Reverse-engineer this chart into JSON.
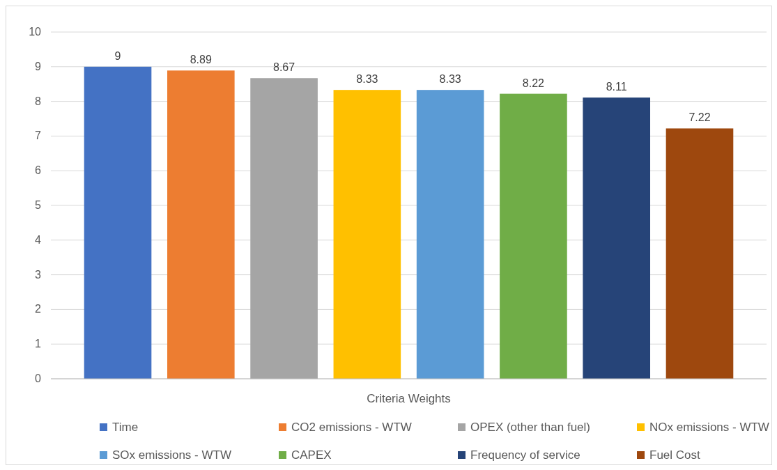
{
  "chart_data": {
    "type": "bar",
    "xlabel": "Criteria Weights",
    "categories": [
      null
    ],
    "series": [
      {
        "name": "Time",
        "color": "#4472c4",
        "values": [
          9
        ]
      },
      {
        "name": "CO2 emissions - WTW",
        "color": "#ed7d31",
        "values": [
          8.89
        ]
      },
      {
        "name": "OPEX (other than fuel)",
        "color": "#a5a5a5",
        "values": [
          8.67
        ]
      },
      {
        "name": "NOx emissions - WTW",
        "color": "#ffc000",
        "values": [
          8.33
        ]
      },
      {
        "name": "SOx emissions - WTW",
        "color": "#5b9bd5",
        "values": [
          8.33
        ]
      },
      {
        "name": "CAPEX",
        "color": "#70ad47",
        "values": [
          8.22
        ]
      },
      {
        "name": "Frequency of service",
        "color": "#264478",
        "values": [
          8.11
        ]
      },
      {
        "name": "Fuel Cost",
        "color": "#9e480e",
        "values": [
          7.22
        ]
      }
    ],
    "ylim": [
      0,
      10
    ],
    "yticks": [
      0,
      1,
      2,
      3,
      4,
      5,
      6,
      7,
      8,
      9,
      10
    ],
    "grid": "y",
    "legend": "bottom",
    "data_labels": true
  }
}
